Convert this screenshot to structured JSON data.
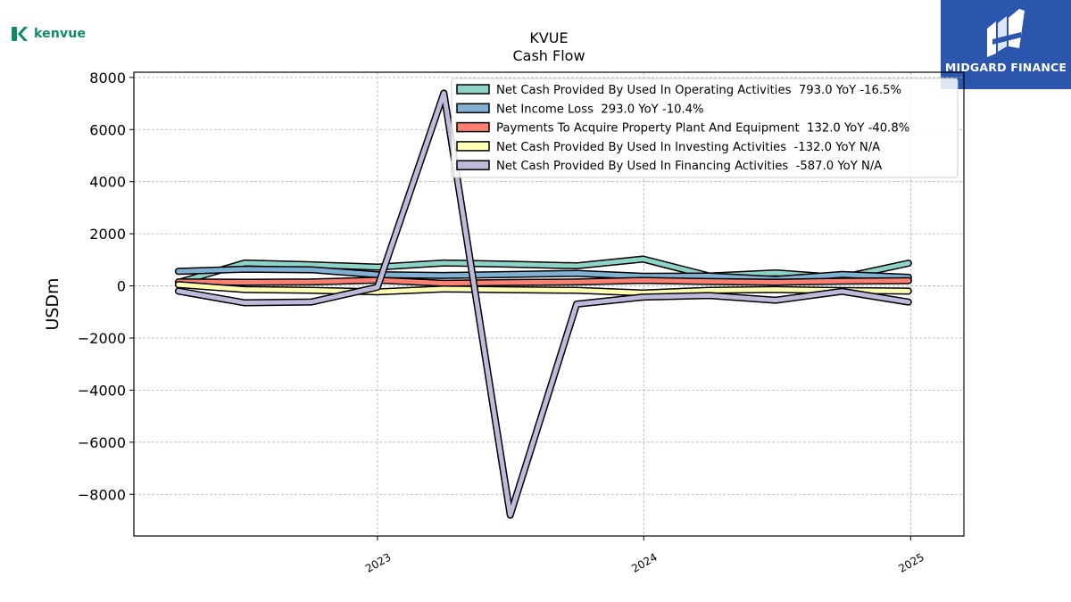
{
  "brand": {
    "name": "kenvue",
    "icon": "k-logo-icon",
    "color": "#0e8a6a"
  },
  "publisher": {
    "name": "MIDGARD FINANCE",
    "icon": "midgard-logo-icon",
    "color": "#2c56ad"
  },
  "chart_data": {
    "type": "line",
    "title": "KVUE",
    "subtitle": "Cash Flow",
    "xlabel": "",
    "ylabel": "USDm",
    "x_ticks": [
      "2023",
      "2024",
      "2025"
    ],
    "y_ticks": [
      8000,
      6000,
      4000,
      2000,
      0,
      -2000,
      -4000,
      -6000,
      -8000
    ],
    "ylim": [
      -9600,
      8200
    ],
    "grid": true,
    "legend_position": "top-right",
    "x": [
      "2022-04-03",
      "2022-07-03",
      "2022-10-02",
      "2023-01-01",
      "2023-04-02",
      "2023-07-02",
      "2023-10-01",
      "2023-12-31",
      "2024-03-31",
      "2024-06-30",
      "2024-09-29",
      "2024-12-29"
    ],
    "series": [
      {
        "name": "Net Cash Provided By Used In Operating Activities",
        "label": "Net Cash Provided By Used In Operating Activities  793.0 YoY -16.5%",
        "color": "#8dd3c7",
        "values": [
          130,
          880,
          810,
          720,
          880,
          830,
          770,
          1030,
          380,
          500,
          320,
          870
        ]
      },
      {
        "name": "Net Income Loss",
        "label": "Net Income Loss  293.0 YoY -10.4%",
        "color": "#80b1d3",
        "values": [
          560,
          640,
          620,
          430,
          400,
          440,
          480,
          370,
          380,
          250,
          440,
          330
        ]
      },
      {
        "name": "Payments To Acquire Property Plant And Equipment",
        "label": "Payments To Acquire Property Plant And Equipment  132.0 YoY -40.8%",
        "color": "#fb8072",
        "values": [
          150,
          140,
          150,
          220,
          100,
          130,
          150,
          210,
          170,
          140,
          180,
          200
        ]
      },
      {
        "name": "Net Cash Provided By Used In Investing Activities",
        "label": "Net Cash Provided By Used In Investing Activities  -132.0 YoY N/A",
        "color": "#ffffb3",
        "values": [
          50,
          -140,
          -170,
          -230,
          -120,
          -150,
          -170,
          -270,
          -170,
          -140,
          -180,
          -200
        ]
      },
      {
        "name": "Net Cash Provided By Used In Financing Activities",
        "label": "Net Cash Provided By Used In Financing Activities  -587.0 YoY N/A",
        "color": "#bebada",
        "values": [
          -200,
          -650,
          -620,
          -50,
          7400,
          -8800,
          -700,
          -430,
          -370,
          -550,
          -210,
          -620
        ]
      }
    ]
  }
}
